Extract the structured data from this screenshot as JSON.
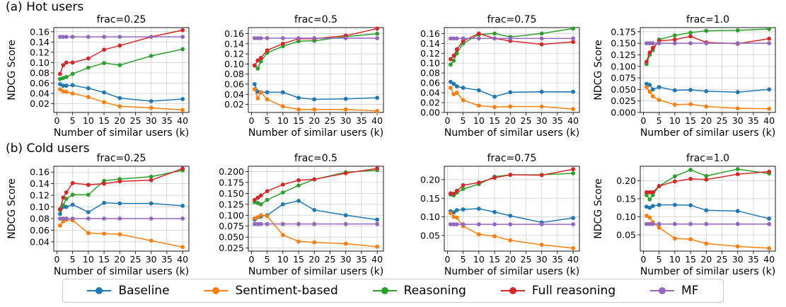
{
  "rows": [
    {
      "title": "(a) Hot users"
    },
    {
      "title": "(b) Cold users"
    }
  ],
  "legend": {
    "items": [
      {
        "name": "Baseline",
        "color": "#1f77b4"
      },
      {
        "name": "Sentiment-based",
        "color": "#ff7f0e"
      },
      {
        "name": "Reasoning",
        "color": "#2ca02c"
      },
      {
        "name": "Full reasoning",
        "color": "#d62728"
      },
      {
        "name": "MF",
        "color": "#9467bd"
      }
    ]
  },
  "chart_data": [
    {
      "type": "line",
      "row": 0,
      "title": "frac=0.25",
      "xlabel": "Number of similar users (k)",
      "ylabel": "NDCG Score",
      "x": [
        1,
        2,
        3,
        5,
        10,
        15,
        20,
        30,
        40
      ],
      "xticks": [
        0,
        5,
        10,
        15,
        20,
        25,
        30,
        35,
        40
      ],
      "yticks": [
        0.02,
        0.04,
        0.06,
        0.08,
        0.1,
        0.12,
        0.14,
        0.16
      ],
      "ytick_labels": [
        "0.02",
        "0.04",
        "0.06",
        "0.08",
        "0.10",
        "0.12",
        "0.14",
        "0.16"
      ],
      "xlim": [
        -1,
        42
      ],
      "ylim": [
        0.003,
        0.168
      ],
      "grid": true,
      "series": [
        {
          "name": "Baseline",
          "values": [
            0.058,
            0.055,
            0.055,
            0.056,
            0.05,
            0.042,
            0.031,
            0.025,
            0.029
          ]
        },
        {
          "name": "Sentiment-based",
          "values": [
            0.048,
            0.044,
            0.043,
            0.04,
            0.033,
            0.023,
            0.015,
            0.012,
            0.008
          ]
        },
        {
          "name": "Reasoning",
          "values": [
            0.068,
            0.07,
            0.072,
            0.078,
            0.09,
            0.099,
            0.095,
            0.113,
            0.126
          ]
        },
        {
          "name": "Full reasoning",
          "values": [
            0.078,
            0.095,
            0.1,
            0.1,
            0.108,
            0.125,
            0.133,
            0.15,
            0.163
          ]
        },
        {
          "name": "MF",
          "values": [
            0.15,
            0.15,
            0.15,
            0.15,
            0.15,
            0.15,
            0.15,
            0.15,
            0.15
          ]
        }
      ]
    },
    {
      "type": "line",
      "row": 0,
      "title": "frac=0.5",
      "xlabel": "Number of similar users (k)",
      "ylabel": "",
      "x": [
        1,
        2,
        3,
        5,
        10,
        15,
        20,
        30,
        40
      ],
      "xticks": [
        0,
        5,
        10,
        15,
        20,
        25,
        30,
        35,
        40
      ],
      "yticks": [
        0.02,
        0.04,
        0.06,
        0.08,
        0.1,
        0.12,
        0.14,
        0.16
      ],
      "ytick_labels": [
        "0.02",
        "0.04",
        "0.06",
        "0.08",
        "0.10",
        "0.12",
        "0.14",
        "0.16"
      ],
      "xlim": [
        -1,
        42
      ],
      "ylim": [
        0.004,
        0.172
      ],
      "grid": true,
      "series": [
        {
          "name": "Baseline",
          "values": [
            0.06,
            0.045,
            0.044,
            0.044,
            0.044,
            0.033,
            0.03,
            0.031,
            0.033
          ]
        },
        {
          "name": "Sentiment-based",
          "values": [
            0.05,
            0.032,
            0.044,
            0.03,
            0.016,
            0.01,
            0.01,
            0.01,
            0.007
          ]
        },
        {
          "name": "Reasoning",
          "values": [
            0.097,
            0.091,
            0.105,
            0.122,
            0.135,
            0.145,
            0.146,
            0.154,
            0.16
          ]
        },
        {
          "name": "Full reasoning",
          "values": [
            0.097,
            0.107,
            0.112,
            0.127,
            0.14,
            0.15,
            0.15,
            0.156,
            0.17
          ]
        },
        {
          "name": "MF",
          "values": [
            0.151,
            0.151,
            0.151,
            0.151,
            0.151,
            0.151,
            0.151,
            0.151,
            0.151
          ]
        }
      ]
    },
    {
      "type": "line",
      "row": 0,
      "title": "frac=0.75",
      "xlabel": "Number of similar users (k)",
      "ylabel": "",
      "x": [
        1,
        2,
        3,
        5,
        10,
        15,
        20,
        30,
        40
      ],
      "xticks": [
        0,
        5,
        10,
        15,
        20,
        25,
        30,
        35,
        40
      ],
      "yticks": [
        0.0,
        0.02,
        0.04,
        0.06,
        0.08,
        0.1,
        0.12,
        0.14,
        0.16
      ],
      "ytick_labels": [
        "0.00",
        "0.02",
        "0.04",
        "0.06",
        "0.08",
        "0.10",
        "0.12",
        "0.14",
        "0.16"
      ],
      "xlim": [
        -1,
        42
      ],
      "ylim": [
        0.0,
        0.172
      ],
      "grid": true,
      "series": [
        {
          "name": "Baseline",
          "values": [
            0.062,
            0.058,
            0.053,
            0.05,
            0.045,
            0.032,
            0.041,
            0.042,
            0.042
          ]
        },
        {
          "name": "Sentiment-based",
          "values": [
            0.05,
            0.037,
            0.04,
            0.025,
            0.014,
            0.011,
            0.012,
            0.012,
            0.007
          ]
        },
        {
          "name": "Reasoning",
          "values": [
            0.097,
            0.105,
            0.12,
            0.14,
            0.158,
            0.16,
            0.153,
            0.16,
            0.17
          ]
        },
        {
          "name": "Full reasoning",
          "values": [
            0.108,
            0.115,
            0.128,
            0.145,
            0.16,
            0.15,
            0.145,
            0.138,
            0.143
          ]
        },
        {
          "name": "MF",
          "values": [
            0.15,
            0.15,
            0.15,
            0.15,
            0.15,
            0.15,
            0.15,
            0.15,
            0.15
          ]
        }
      ]
    },
    {
      "type": "line",
      "row": 0,
      "title": "frac=1.0",
      "xlabel": "Number of similar users (k)",
      "ylabel": "NDCG Score",
      "x": [
        1,
        2,
        3,
        5,
        10,
        15,
        20,
        30,
        40
      ],
      "xticks": [
        0,
        5,
        10,
        15,
        20,
        25,
        30,
        35,
        40
      ],
      "yticks": [
        0.0,
        0.025,
        0.05,
        0.075,
        0.1,
        0.125,
        0.15,
        0.175
      ],
      "ytick_labels": [
        "0.000",
        "0.025",
        "0.050",
        "0.075",
        "0.100",
        "0.125",
        "0.150",
        "0.175"
      ],
      "xlim": [
        -1,
        42
      ],
      "ylim": [
        0.0,
        0.184
      ],
      "grid": true,
      "series": [
        {
          "name": "Baseline",
          "values": [
            0.062,
            0.06,
            0.05,
            0.055,
            0.048,
            0.049,
            0.046,
            0.044,
            0.05
          ]
        },
        {
          "name": "Sentiment-based",
          "values": [
            0.055,
            0.045,
            0.035,
            0.027,
            0.017,
            0.018,
            0.013,
            0.009,
            0.008
          ]
        },
        {
          "name": "Reasoning",
          "values": [
            0.105,
            0.125,
            0.135,
            0.158,
            0.167,
            0.173,
            0.177,
            0.178,
            0.181
          ]
        },
        {
          "name": "Full reasoning",
          "values": [
            0.11,
            0.13,
            0.14,
            0.155,
            0.158,
            0.165,
            0.152,
            0.149,
            0.16
          ]
        },
        {
          "name": "MF",
          "values": [
            0.15,
            0.15,
            0.15,
            0.15,
            0.15,
            0.15,
            0.15,
            0.15,
            0.15
          ]
        }
      ]
    },
    {
      "type": "line",
      "row": 1,
      "title": "frac=0.25",
      "xlabel": "Number of similar users (k)",
      "ylabel": "NDCG Score",
      "x": [
        1,
        2,
        3,
        5,
        10,
        15,
        20,
        30,
        40
      ],
      "xticks": [
        0,
        5,
        10,
        15,
        20,
        25,
        30,
        35,
        40
      ],
      "yticks": [
        0.04,
        0.06,
        0.08,
        0.1,
        0.12,
        0.14,
        0.16
      ],
      "ytick_labels": [
        "0.04",
        "0.06",
        "0.08",
        "0.10",
        "0.12",
        "0.14",
        "0.16"
      ],
      "xlim": [
        -1,
        42
      ],
      "ylim": [
        0.024,
        0.17
      ],
      "grid": true,
      "series": [
        {
          "name": "Baseline",
          "values": [
            0.088,
            0.1,
            0.1,
            0.104,
            0.091,
            0.107,
            0.106,
            0.106,
            0.102
          ]
        },
        {
          "name": "Sentiment-based",
          "values": [
            0.068,
            0.075,
            0.078,
            0.077,
            0.055,
            0.054,
            0.053,
            0.042,
            0.031
          ]
        },
        {
          "name": "Reasoning",
          "values": [
            0.095,
            0.103,
            0.114,
            0.121,
            0.121,
            0.145,
            0.148,
            0.152,
            0.163
          ]
        },
        {
          "name": "Full reasoning",
          "values": [
            0.096,
            0.116,
            0.125,
            0.141,
            0.138,
            0.14,
            0.144,
            0.146,
            0.166
          ]
        },
        {
          "name": "MF",
          "values": [
            0.08,
            0.08,
            0.08,
            0.08,
            0.08,
            0.08,
            0.08,
            0.08,
            0.08
          ]
        }
      ]
    },
    {
      "type": "line",
      "row": 1,
      "title": "frac=0.5",
      "xlabel": "Number of similar users (k)",
      "ylabel": "",
      "x": [
        1,
        2,
        3,
        5,
        10,
        15,
        20,
        30,
        40
      ],
      "xticks": [
        0,
        5,
        10,
        15,
        20,
        25,
        30,
        35,
        40
      ],
      "yticks": [
        0.025,
        0.05,
        0.075,
        0.1,
        0.125,
        0.15,
        0.175,
        0.2
      ],
      "ytick_labels": [
        "0.025",
        "0.050",
        "0.075",
        "0.100",
        "0.125",
        "0.150",
        "0.175",
        "0.200"
      ],
      "xlim": [
        -1,
        42
      ],
      "ylim": [
        0.018,
        0.212
      ],
      "grid": true,
      "series": [
        {
          "name": "Baseline",
          "values": [
            0.09,
            0.095,
            0.097,
            0.1,
            0.125,
            0.133,
            0.112,
            0.1,
            0.09
          ]
        },
        {
          "name": "Sentiment-based",
          "values": [
            0.093,
            0.095,
            0.1,
            0.098,
            0.055,
            0.04,
            0.038,
            0.035,
            0.028
          ]
        },
        {
          "name": "Reasoning",
          "values": [
            0.13,
            0.128,
            0.125,
            0.135,
            0.152,
            0.168,
            0.182,
            0.198,
            0.203
          ]
        },
        {
          "name": "Full reasoning",
          "values": [
            0.135,
            0.14,
            0.145,
            0.155,
            0.17,
            0.18,
            0.182,
            0.196,
            0.207
          ]
        },
        {
          "name": "MF",
          "values": [
            0.08,
            0.08,
            0.08,
            0.08,
            0.08,
            0.08,
            0.08,
            0.08,
            0.08
          ]
        }
      ]
    },
    {
      "type": "line",
      "row": 1,
      "title": "frac=0.75",
      "xlabel": "Number of similar users (k)",
      "ylabel": "",
      "x": [
        1,
        2,
        3,
        5,
        10,
        15,
        20,
        30,
        40
      ],
      "xticks": [
        0,
        5,
        10,
        15,
        20,
        25,
        30,
        35,
        40
      ],
      "yticks": [
        0.05,
        0.1,
        0.15,
        0.2
      ],
      "ytick_labels": [
        "0.05",
        "0.10",
        "0.15",
        "0.20"
      ],
      "xlim": [
        -1,
        42
      ],
      "ylim": [
        0.008,
        0.236
      ],
      "grid": true,
      "series": [
        {
          "name": "Baseline",
          "values": [
            0.115,
            0.112,
            0.118,
            0.12,
            0.122,
            0.113,
            0.103,
            0.085,
            0.097
          ]
        },
        {
          "name": "Sentiment-based",
          "values": [
            0.11,
            0.1,
            0.098,
            0.075,
            0.053,
            0.048,
            0.037,
            0.025,
            0.016
          ]
        },
        {
          "name": "Reasoning",
          "values": [
            0.16,
            0.158,
            0.165,
            0.175,
            0.188,
            0.208,
            0.213,
            0.213,
            0.217
          ]
        },
        {
          "name": "Full reasoning",
          "values": [
            0.163,
            0.162,
            0.17,
            0.185,
            0.192,
            0.205,
            0.213,
            0.212,
            0.228
          ]
        },
        {
          "name": "MF",
          "values": [
            0.08,
            0.08,
            0.08,
            0.08,
            0.08,
            0.08,
            0.08,
            0.08,
            0.08
          ]
        }
      ]
    },
    {
      "type": "line",
      "row": 1,
      "title": "frac=1.0",
      "xlabel": "Number of similar users (k)",
      "ylabel": "NDCG Score",
      "x": [
        1,
        2,
        3,
        5,
        10,
        15,
        20,
        30,
        40
      ],
      "xticks": [
        0,
        5,
        10,
        15,
        20,
        25,
        30,
        35,
        40
      ],
      "yticks": [
        0.05,
        0.1,
        0.15,
        0.2
      ],
      "ytick_labels": [
        "0.05",
        "0.10",
        "0.15",
        "0.20"
      ],
      "xlim": [
        -1,
        42
      ],
      "ylim": [
        0.005,
        0.24
      ],
      "grid": true,
      "series": [
        {
          "name": "Baseline",
          "values": [
            0.128,
            0.125,
            0.13,
            0.133,
            0.133,
            0.132,
            0.118,
            0.116,
            0.095
          ]
        },
        {
          "name": "Sentiment-based",
          "values": [
            0.103,
            0.098,
            0.085,
            0.07,
            0.04,
            0.038,
            0.026,
            0.018,
            0.013
          ]
        },
        {
          "name": "Reasoning",
          "values": [
            0.16,
            0.148,
            0.16,
            0.185,
            0.212,
            0.23,
            0.213,
            0.232,
            0.22
          ]
        },
        {
          "name": "Full reasoning",
          "values": [
            0.168,
            0.168,
            0.168,
            0.185,
            0.198,
            0.205,
            0.203,
            0.218,
            0.225
          ]
        },
        {
          "name": "MF",
          "values": [
            0.08,
            0.08,
            0.08,
            0.08,
            0.08,
            0.08,
            0.08,
            0.08,
            0.08
          ]
        }
      ]
    }
  ]
}
